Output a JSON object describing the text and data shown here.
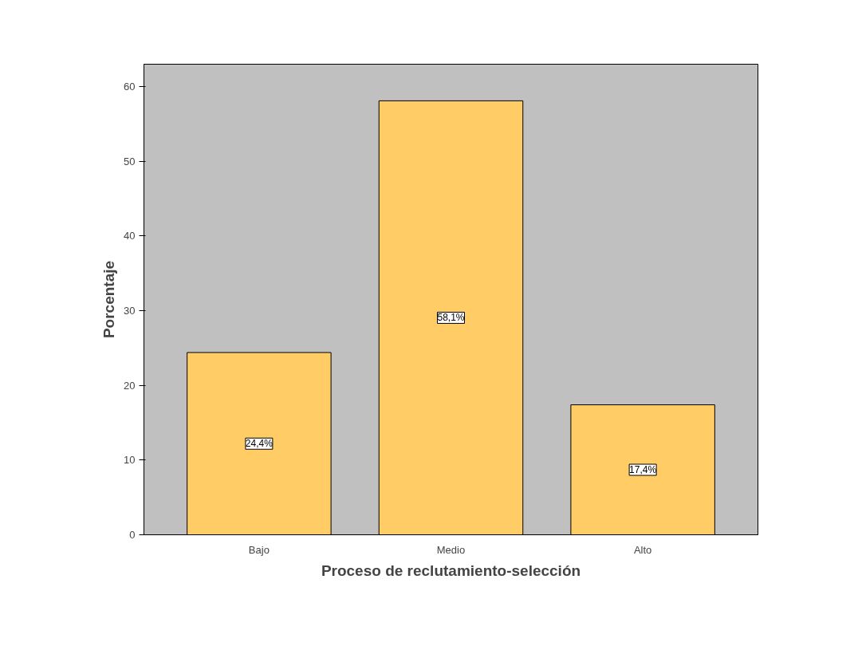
{
  "chart_data": {
    "type": "bar",
    "xlabel": "Proceso de reclutamiento-selección",
    "ylabel": "Porcentaje",
    "categories": [
      "Bajo",
      "Medio",
      "Alto"
    ],
    "values": [
      24.4,
      58.1,
      17.4
    ],
    "value_labels": [
      "24,4%",
      "58,1%",
      "17,4%"
    ],
    "color": "#ffcc66",
    "ylim": [
      0,
      63
    ],
    "yticks": [
      0,
      10,
      20,
      30,
      40,
      50,
      60
    ],
    "grid": false
  }
}
